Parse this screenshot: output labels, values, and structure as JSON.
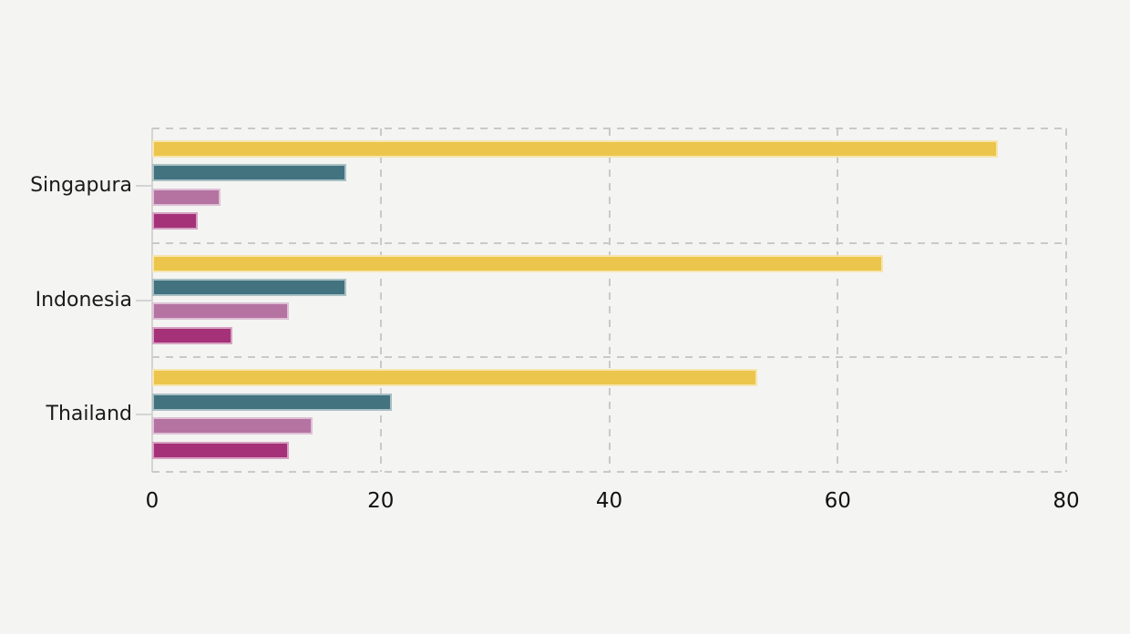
{
  "chart_data": {
    "type": "bar",
    "orientation": "horizontal",
    "title": "",
    "xlabel": "",
    "ylabel": "",
    "categories": [
      "Singapura",
      "Indonesia",
      "Thailand"
    ],
    "series": [
      {
        "name": "yellow",
        "color": "#ecc64c",
        "values": [
          74,
          64,
          53
        ]
      },
      {
        "name": "teal",
        "color": "#42737f",
        "values": [
          17,
          17,
          21
        ]
      },
      {
        "name": "mauve",
        "color": "#b573a2",
        "values": [
          6,
          12,
          14
        ]
      },
      {
        "name": "magenta",
        "color": "#a53278",
        "values": [
          4,
          7,
          12
        ]
      }
    ],
    "xlim": [
      0,
      80
    ],
    "x_ticks": [
      "0",
      "20",
      "40",
      "60",
      "80"
    ],
    "grid": "dashed",
    "legend_position": "none"
  },
  "colors": {
    "background": "#f4f4f2",
    "gridline": "#c9c9c9",
    "axis_line": "#d4d4d4",
    "text": "#1a1a1a"
  }
}
